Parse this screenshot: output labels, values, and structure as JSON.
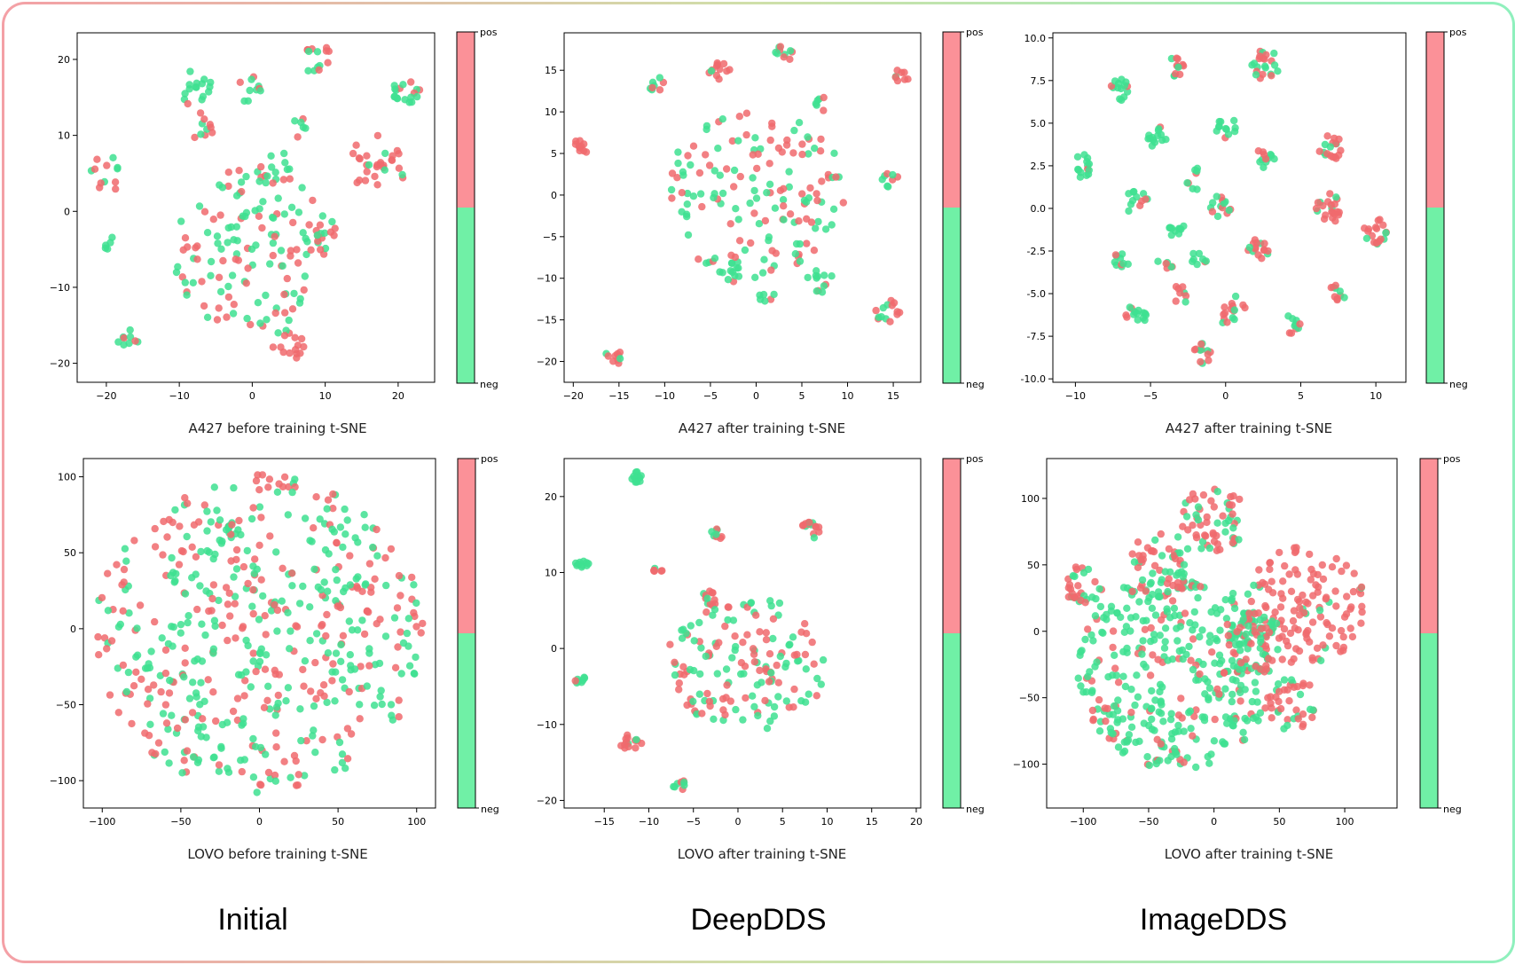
{
  "colors": {
    "pos": "#f06a6d",
    "neg": "#3ee090",
    "colorbar_pos": "#fb9198",
    "colorbar_neg": "#70f0a6"
  },
  "bottom_labels": {
    "initial": "Initial",
    "deepdds": "DeepDDS",
    "imagedds": "ImageDDS"
  },
  "chart_data": [
    {
      "type": "scatter",
      "caption": "A427 before training t-SNE",
      "xlim": [
        -24,
        25
      ],
      "ylim": [
        -22.5,
        23.5
      ],
      "xticks": [
        -20,
        -10,
        0,
        10,
        20
      ],
      "yticks": [
        -20,
        -10,
        0,
        10,
        20
      ],
      "colorbar": {
        "top": "pos",
        "bottom": "neg"
      },
      "clusters": [
        {
          "cx": -20,
          "cy": 5,
          "r": 2.5,
          "n": 12,
          "pos": 0.6
        },
        {
          "cx": -8,
          "cy": 16,
          "r": 2.5,
          "n": 16,
          "pos": 0.3
        },
        {
          "cx": 0,
          "cy": 16,
          "r": 2,
          "n": 10,
          "pos": 0.4
        },
        {
          "cx": 9,
          "cy": 20,
          "r": 2,
          "n": 14,
          "pos": 0.6
        },
        {
          "cx": 21,
          "cy": 16,
          "r": 2,
          "n": 18,
          "pos": 0.2
        },
        {
          "cx": -7,
          "cy": 11,
          "r": 2,
          "n": 10,
          "pos": 0.7
        },
        {
          "cx": 4,
          "cy": 6,
          "r": 2,
          "n": 8,
          "pos": 0.2
        },
        {
          "cx": 7,
          "cy": 11,
          "r": 1.5,
          "n": 6,
          "pos": 0.4
        },
        {
          "cx": 17,
          "cy": 6,
          "r": 4,
          "n": 30,
          "pos": 0.7
        },
        {
          "cx": -20,
          "cy": -4,
          "r": 1,
          "n": 5,
          "pos": 0.1
        },
        {
          "cx": 0,
          "cy": -5,
          "r": 11,
          "n": 140,
          "pos": 0.5
        },
        {
          "cx": 5,
          "cy": -18,
          "r": 2.5,
          "n": 16,
          "pos": 0.9
        },
        {
          "cx": -17,
          "cy": -17,
          "r": 1.5,
          "n": 9,
          "pos": 0.2
        },
        {
          "cx": 10,
          "cy": -3,
          "r": 2,
          "n": 10,
          "pos": 0.7
        }
      ]
    },
    {
      "type": "scatter",
      "caption": "A427 after training t-SNE",
      "xlim": [
        -21,
        18
      ],
      "ylim": [
        -22.5,
        19.5
      ],
      "xticks": [
        -20,
        -15,
        -10,
        -5,
        0,
        5,
        10,
        15
      ],
      "yticks": [
        -20,
        -15,
        -10,
        -5,
        0,
        5,
        10,
        15
      ],
      "colorbar": {
        "top": "pos",
        "bottom": "neg"
      },
      "clusters": [
        {
          "cx": -19,
          "cy": 6,
          "r": 1,
          "n": 10,
          "pos": 1
        },
        {
          "cx": -11,
          "cy": 13.5,
          "r": 1,
          "n": 8,
          "pos": 0.5
        },
        {
          "cx": -4,
          "cy": 15,
          "r": 1.2,
          "n": 12,
          "pos": 0.9
        },
        {
          "cx": 3,
          "cy": 17,
          "r": 1,
          "n": 10,
          "pos": 0.3
        },
        {
          "cx": 16,
          "cy": 14.5,
          "r": 1,
          "n": 8,
          "pos": 0.5
        },
        {
          "cx": -15.5,
          "cy": -19.5,
          "r": 1,
          "n": 10,
          "pos": 0.8
        },
        {
          "cx": 14.5,
          "cy": -14,
          "r": 1.5,
          "n": 14,
          "pos": 0.8
        },
        {
          "cx": 7,
          "cy": -10.5,
          "r": 1.5,
          "n": 12,
          "pos": 0.1
        },
        {
          "cx": 1,
          "cy": -12,
          "r": 1,
          "n": 6,
          "pos": 0.1
        },
        {
          "cx": -3,
          "cy": -9,
          "r": 1.5,
          "n": 10,
          "pos": 0.5
        },
        {
          "cx": 14.5,
          "cy": 2,
          "r": 1.2,
          "n": 8,
          "pos": 0.3
        },
        {
          "cx": 7,
          "cy": 11,
          "r": 1,
          "n": 6,
          "pos": 0.3
        },
        {
          "cx": 0,
          "cy": 0,
          "r": 10,
          "n": 150,
          "pos": 0.45
        }
      ]
    },
    {
      "type": "scatter",
      "caption": "A427 after training t-SNE",
      "xlim": [
        -11.5,
        12
      ],
      "ylim": [
        -10.2,
        10.3
      ],
      "xticks": [
        -10,
        -5,
        0,
        5,
        10
      ],
      "yticks": [
        -10.0,
        -7.5,
        -5.0,
        -2.5,
        0.0,
        2.5,
        5.0,
        7.5,
        10.0
      ],
      "colorbar": {
        "top": "pos",
        "bottom": "neg"
      },
      "clusters": [
        {
          "cx": -9.5,
          "cy": 2.5,
          "r": 0.7,
          "n": 14,
          "pos": 0.1
        },
        {
          "cx": -7,
          "cy": 7,
          "r": 0.7,
          "n": 14,
          "pos": 0.2
        },
        {
          "cx": -3.3,
          "cy": 8.3,
          "r": 0.6,
          "n": 12,
          "pos": 0.7
        },
        {
          "cx": 2.7,
          "cy": 8.3,
          "r": 1,
          "n": 22,
          "pos": 0.6
        },
        {
          "cx": -4.5,
          "cy": 4.2,
          "r": 0.7,
          "n": 14,
          "pos": 0.1
        },
        {
          "cx": 0,
          "cy": 4.8,
          "r": 0.7,
          "n": 12,
          "pos": 0.1
        },
        {
          "cx": 2.5,
          "cy": 3,
          "r": 0.8,
          "n": 12,
          "pos": 0.4
        },
        {
          "cx": 7,
          "cy": 3.5,
          "r": 0.8,
          "n": 18,
          "pos": 0.8
        },
        {
          "cx": -2,
          "cy": 1.7,
          "r": 0.7,
          "n": 8,
          "pos": 0.2
        },
        {
          "cx": -6,
          "cy": 0.5,
          "r": 0.8,
          "n": 12,
          "pos": 0.3
        },
        {
          "cx": -0.5,
          "cy": 0,
          "r": 0.9,
          "n": 14,
          "pos": 0.5
        },
        {
          "cx": 6.8,
          "cy": 0,
          "r": 0.9,
          "n": 22,
          "pos": 0.8
        },
        {
          "cx": 10,
          "cy": -1.3,
          "r": 0.8,
          "n": 18,
          "pos": 0.8
        },
        {
          "cx": -3.3,
          "cy": -1.3,
          "r": 0.6,
          "n": 10,
          "pos": 0.1
        },
        {
          "cx": 2.2,
          "cy": -2.2,
          "r": 0.8,
          "n": 16,
          "pos": 0.8
        },
        {
          "cx": -7,
          "cy": -3,
          "r": 0.6,
          "n": 10,
          "pos": 0.1
        },
        {
          "cx": -4,
          "cy": -3.2,
          "r": 0.6,
          "n": 6,
          "pos": 0.2
        },
        {
          "cx": -1.8,
          "cy": -3,
          "r": 0.6,
          "n": 8,
          "pos": 0.2
        },
        {
          "cx": -3,
          "cy": -5,
          "r": 0.6,
          "n": 8,
          "pos": 0.7
        },
        {
          "cx": 0.5,
          "cy": -6,
          "r": 1,
          "n": 16,
          "pos": 0.6
        },
        {
          "cx": 7.5,
          "cy": -5,
          "r": 0.6,
          "n": 10,
          "pos": 0.7
        },
        {
          "cx": -6,
          "cy": -6.3,
          "r": 0.7,
          "n": 14,
          "pos": 0.3
        },
        {
          "cx": 4.5,
          "cy": -6.8,
          "r": 0.6,
          "n": 10,
          "pos": 0.4
        },
        {
          "cx": -1.5,
          "cy": -8.5,
          "r": 0.6,
          "n": 12,
          "pos": 0.7
        }
      ]
    },
    {
      "type": "scatter",
      "caption": "LOVO before training t-SNE",
      "xlim": [
        -112,
        112
      ],
      "ylim": [
        -118,
        112
      ],
      "xticks": [
        -100,
        -50,
        0,
        50,
        100
      ],
      "yticks": [
        -100,
        -50,
        0,
        50,
        100
      ],
      "colorbar": {
        "top": "pos",
        "bottom": "neg"
      },
      "clusters": [
        {
          "cx": 0,
          "cy": -3,
          "r": 105,
          "n": 520,
          "pos": 0.45,
          "uniform": true
        },
        {
          "cx": -18,
          "cy": 65,
          "r": 5,
          "n": 14,
          "pos": 0.1
        }
      ]
    },
    {
      "type": "scatter",
      "caption": "LOVO after training t-SNE",
      "xlim": [
        -19.5,
        20.5
      ],
      "ylim": [
        -21,
        25
      ],
      "xticks": [
        -15,
        -10,
        -5,
        0,
        5,
        10,
        15,
        20
      ],
      "yticks": [
        -20,
        -10,
        0,
        10,
        20
      ],
      "colorbar": {
        "top": "pos",
        "bottom": "neg"
      },
      "clusters": [
        {
          "cx": -11.5,
          "cy": 22.5,
          "r": 0.8,
          "n": 12,
          "pos": 0
        },
        {
          "cx": -17.5,
          "cy": 11,
          "r": 0.8,
          "n": 10,
          "pos": 0
        },
        {
          "cx": -2.5,
          "cy": 15,
          "r": 0.8,
          "n": 8,
          "pos": 0.6
        },
        {
          "cx": 8,
          "cy": 15.5,
          "r": 1.2,
          "n": 16,
          "pos": 0.8
        },
        {
          "cx": -17.5,
          "cy": -4.5,
          "r": 0.8,
          "n": 8,
          "pos": 0.1
        },
        {
          "cx": -12,
          "cy": -12.5,
          "r": 1.2,
          "n": 14,
          "pos": 0.8
        },
        {
          "cx": -6.5,
          "cy": -18,
          "r": 0.8,
          "n": 8,
          "pos": 0.4
        },
        {
          "cx": -9,
          "cy": 10.5,
          "r": 0.6,
          "n": 6,
          "pos": 0.8
        },
        {
          "cx": -3,
          "cy": 6.5,
          "r": 1.2,
          "n": 12,
          "pos": 0.8
        },
        {
          "cx": 1,
          "cy": -2,
          "r": 9,
          "n": 150,
          "pos": 0.5
        }
      ]
    },
    {
      "type": "scatter",
      "caption": "LOVO after training t-SNE",
      "xlim": [
        -128,
        140
      ],
      "ylim": [
        -133,
        130
      ],
      "xticks": [
        -100,
        -50,
        0,
        50,
        100
      ],
      "yticks": [
        -100,
        -50,
        0,
        50,
        100
      ],
      "colorbar": {
        "top": "pos",
        "bottom": "neg"
      },
      "clusters": [
        {
          "cx": -30,
          "cy": -30,
          "r": 75,
          "n": 380,
          "pos": 0.2,
          "uniform": true
        },
        {
          "cx": 0,
          "cy": 85,
          "r": 25,
          "n": 60,
          "pos": 0.6
        },
        {
          "cx": 70,
          "cy": 20,
          "r": 45,
          "n": 130,
          "pos": 0.85
        },
        {
          "cx": -100,
          "cy": 35,
          "r": 15,
          "n": 30,
          "pos": 0.55
        },
        {
          "cx": -40,
          "cy": 50,
          "r": 25,
          "n": 50,
          "pos": 0.5
        },
        {
          "cx": 60,
          "cy": -55,
          "r": 20,
          "n": 40,
          "pos": 0.75
        },
        {
          "cx": 30,
          "cy": -10,
          "r": 25,
          "n": 60,
          "pos": 0.35
        }
      ]
    }
  ]
}
